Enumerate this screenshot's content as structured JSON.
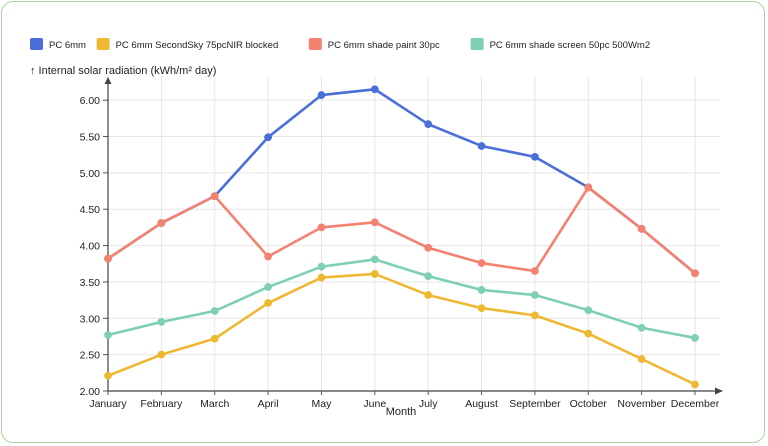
{
  "chart_data": {
    "type": "line",
    "title": "",
    "ylabel": "↑ Internal solar radiation (kWh/m² day)",
    "xlabel": "Month",
    "categories": [
      "January",
      "February",
      "March",
      "April",
      "May",
      "June",
      "July",
      "August",
      "September",
      "October",
      "November",
      "December"
    ],
    "ylim": [
      2.0,
      6.25
    ],
    "yticks": [
      "2.00",
      "2.50",
      "3.00",
      "3.50",
      "4.00",
      "4.50",
      "5.00",
      "5.50",
      "6.00"
    ],
    "grid": true,
    "legend_position": "top-left",
    "series": [
      {
        "name": "PC 6mm",
        "color": "#4a6fd8",
        "values": [
          3.82,
          4.31,
          4.68,
          5.49,
          6.07,
          6.15,
          5.67,
          5.37,
          5.22,
          4.8,
          4.23,
          3.62
        ]
      },
      {
        "name": "PC 6mm SecondSky 75pcNIR blocked",
        "color": "#efb833",
        "values": [
          2.21,
          2.5,
          2.72,
          3.21,
          3.56,
          3.61,
          3.32,
          3.14,
          3.04,
          2.79,
          2.44,
          2.09
        ]
      },
      {
        "name": "PC 6mm shade paint 30pc",
        "color": "#f4826f",
        "values": [
          3.82,
          4.31,
          4.68,
          3.85,
          4.25,
          4.32,
          3.97,
          3.76,
          3.65,
          4.8,
          4.23,
          3.62
        ]
      },
      {
        "name": "PC 6mm shade screen 50pc 500Wm2",
        "color": "#7ecfb5",
        "values": [
          2.77,
          2.95,
          3.1,
          3.43,
          3.71,
          3.81,
          3.58,
          3.39,
          3.32,
          3.11,
          2.87,
          2.73
        ]
      }
    ]
  }
}
